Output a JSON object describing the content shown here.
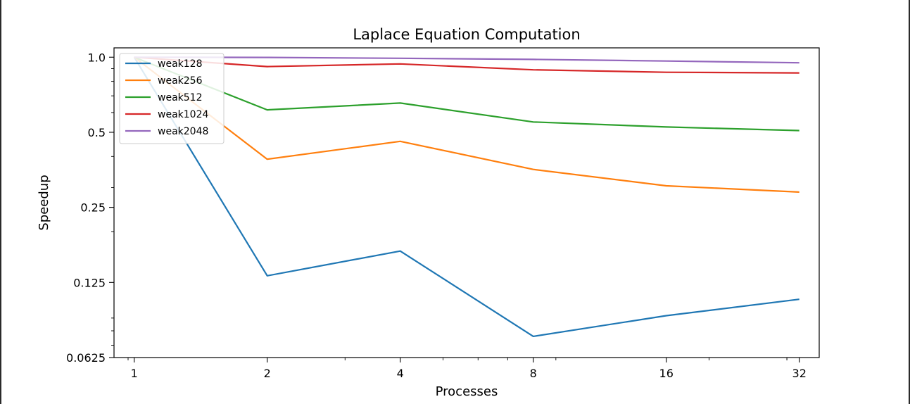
{
  "chart_data": {
    "type": "line",
    "title": "Laplace Equation Computation",
    "xlabel": "Processes",
    "ylabel": "Speedup",
    "x": [
      1,
      2,
      4,
      8,
      16,
      32
    ],
    "x_tick_labels": [
      "1",
      "2",
      "4",
      "8",
      "16",
      "32"
    ],
    "x_scale": "log2",
    "y_scale": "log2",
    "ylim": [
      0.0625,
      1.09
    ],
    "y_ticks": [
      1.0,
      0.5,
      0.25,
      0.125,
      0.0625
    ],
    "y_tick_labels": [
      "1.0",
      "0.5",
      "0.25",
      "0.125",
      "0.0625"
    ],
    "legend_position": "top-left",
    "series": [
      {
        "name": "weak128",
        "color": "#1f77b4",
        "values": [
          1.0,
          0.133,
          0.167,
          0.076,
          0.092,
          0.107
        ]
      },
      {
        "name": "weak256",
        "color": "#ff7f0e",
        "values": [
          1.0,
          0.39,
          0.46,
          0.355,
          0.305,
          0.288
        ]
      },
      {
        "name": "weak512",
        "color": "#2ca02c",
        "values": [
          1.0,
          0.615,
          0.655,
          0.55,
          0.525,
          0.508
        ]
      },
      {
        "name": "weak1024",
        "color": "#d62728",
        "values": [
          1.0,
          0.917,
          0.94,
          0.89,
          0.87,
          0.865
        ]
      },
      {
        "name": "weak2048",
        "color": "#9467bd",
        "values": [
          1.0,
          0.998,
          0.99,
          0.98,
          0.965,
          0.95
        ]
      }
    ]
  }
}
